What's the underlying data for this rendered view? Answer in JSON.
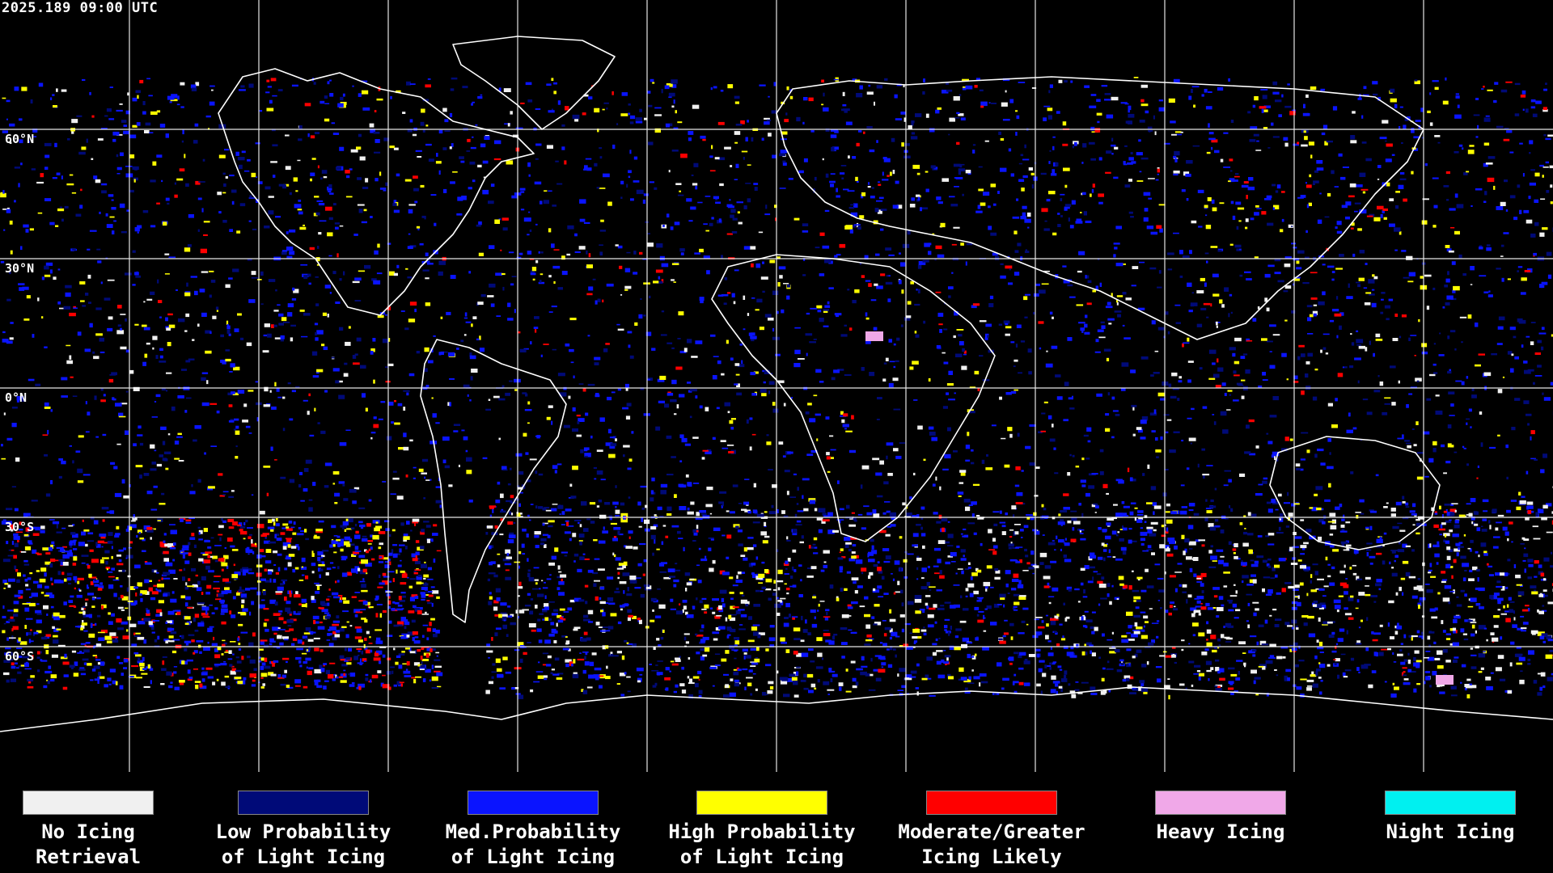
{
  "timestamp": "2025.189 09:00 UTC",
  "lat_labels": [
    "60°N",
    "30°N",
    "0°N",
    "30°S",
    "60°S"
  ],
  "legend": [
    {
      "line1": "No Icing",
      "line2": "Retrieval",
      "color": "#f0f0f0"
    },
    {
      "line1": "Low Probability",
      "line2": "of Light Icing",
      "color": "#000a78"
    },
    {
      "line1": "Med.Probability",
      "line2": "of Light Icing",
      "color": "#0a14ff"
    },
    {
      "line1": "High Probability",
      "line2": "of Light Icing",
      "color": "#ffff00"
    },
    {
      "line1": "Moderate/Greater",
      "line2": "Icing Likely",
      "color": "#ff0000"
    },
    {
      "line1": "Heavy Icing",
      "line2": "",
      "color": "#f0a8e8"
    },
    {
      "line1": "Night Icing",
      "line2": "",
      "color": "#00f0f0"
    }
  ]
}
